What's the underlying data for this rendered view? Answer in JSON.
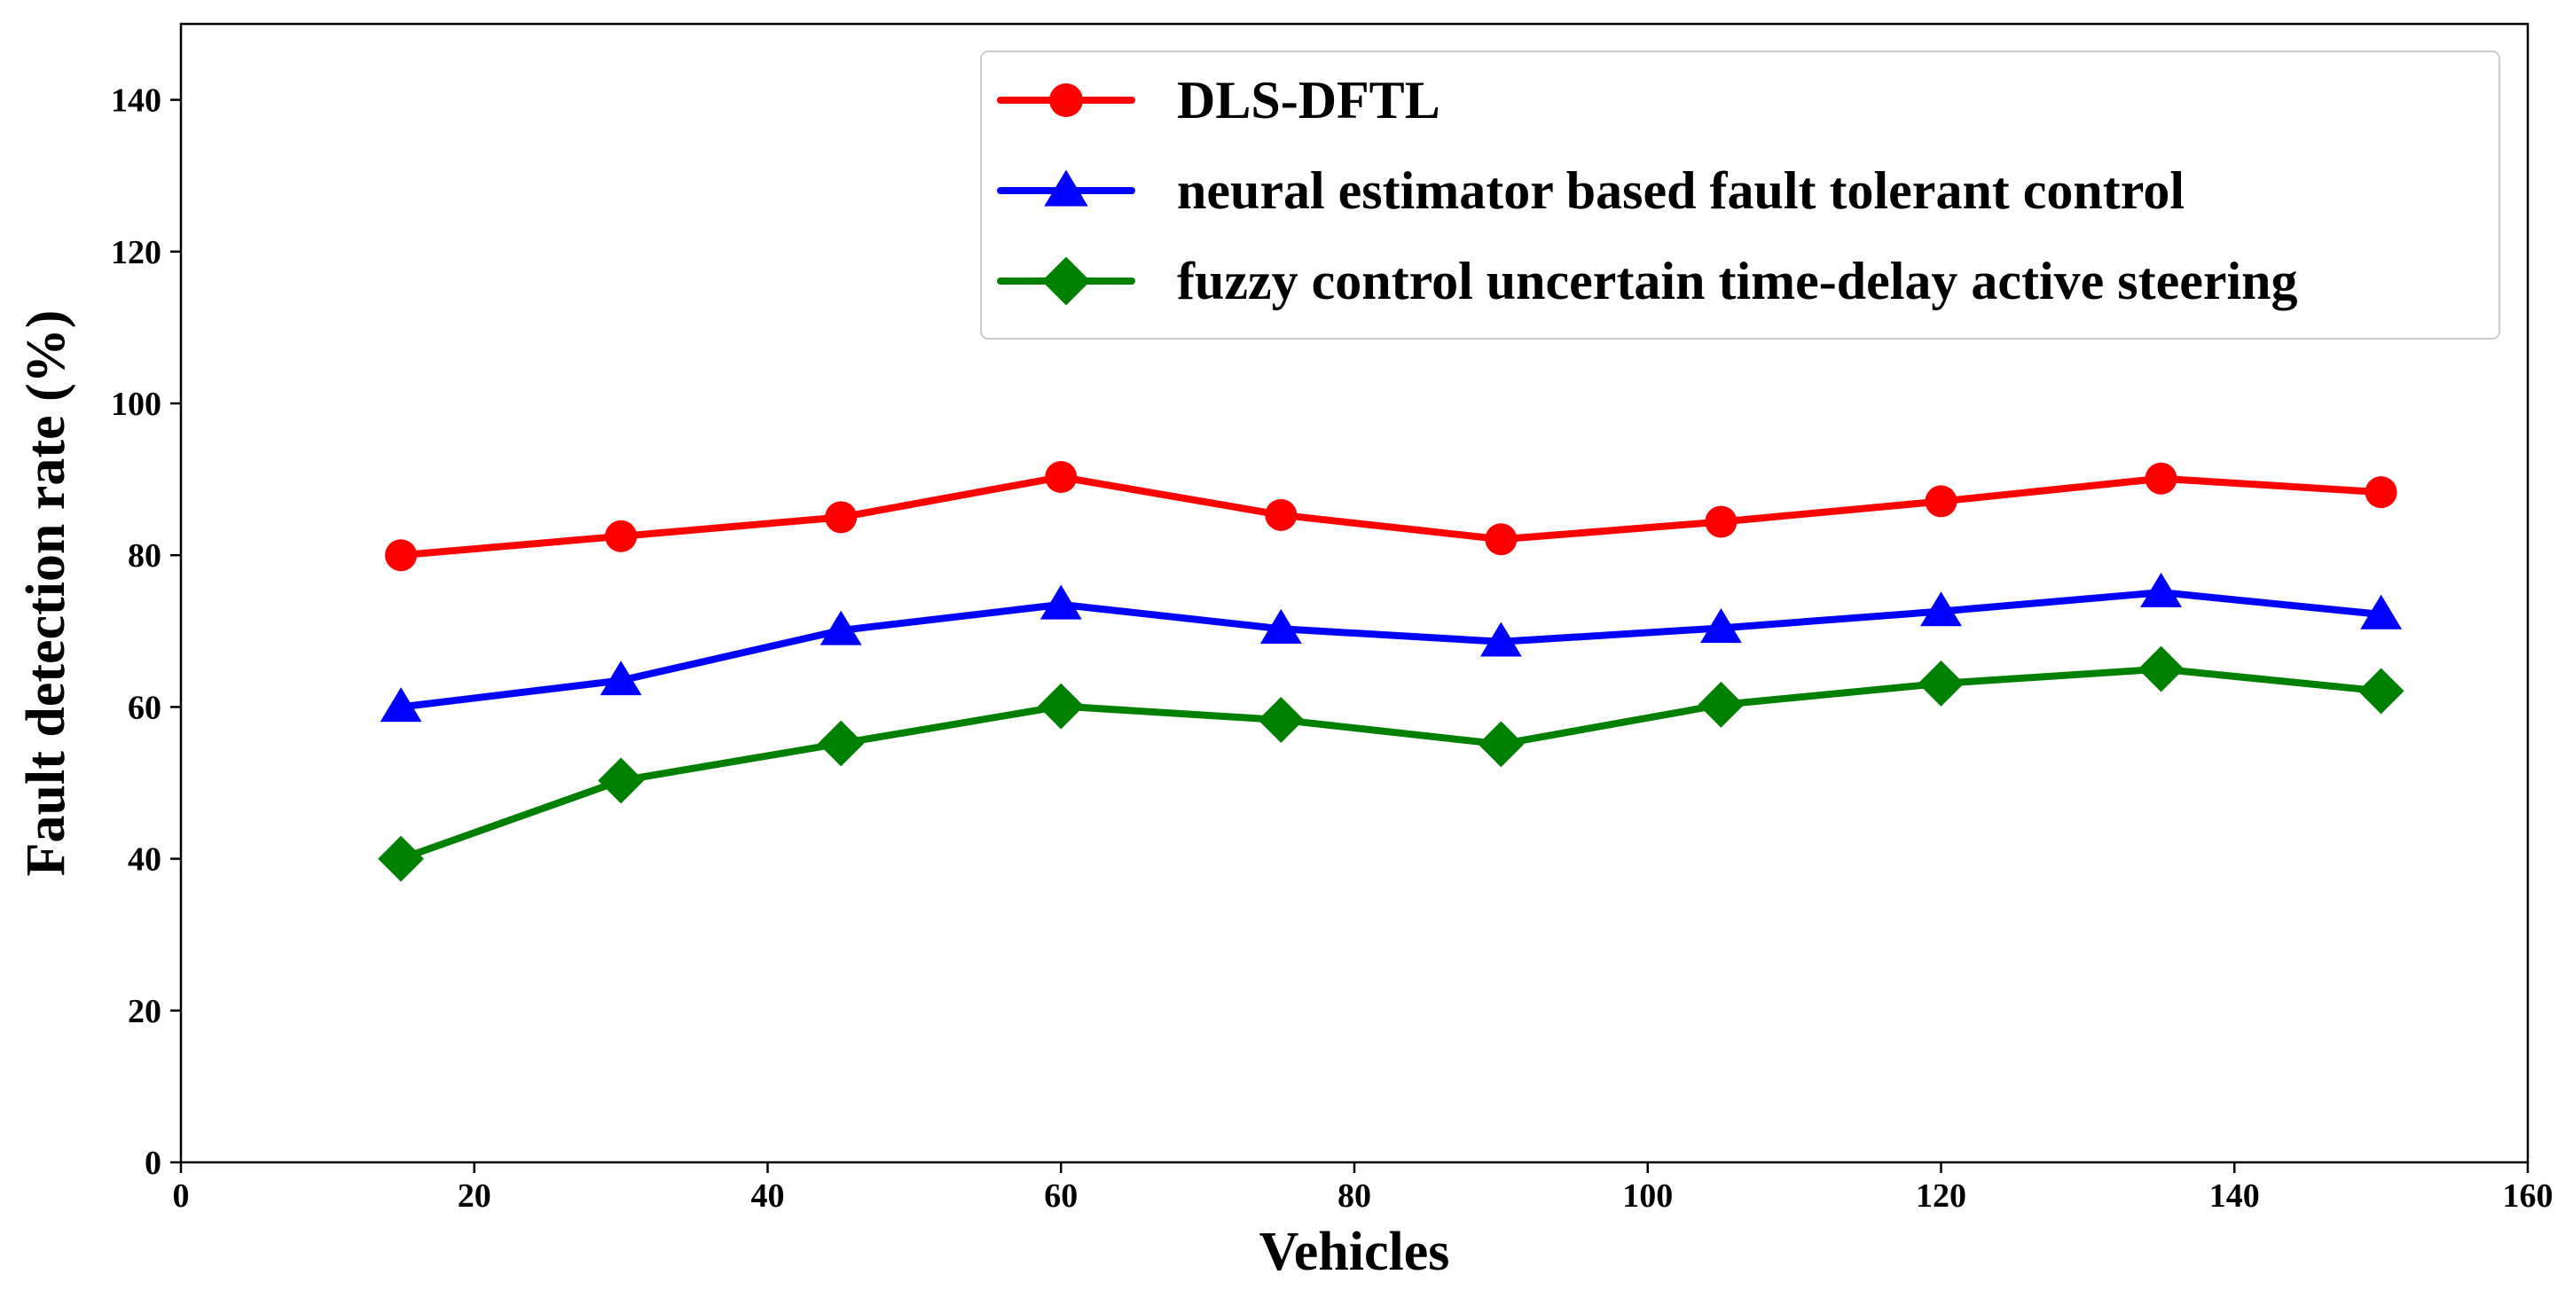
{
  "chart_data": {
    "type": "line",
    "title": "",
    "xlabel": "Vehicles",
    "ylabel": "Fault detection rate (%)",
    "xlim": [
      0,
      160
    ],
    "ylim": [
      0,
      150
    ],
    "xticks": [
      0,
      20,
      40,
      60,
      80,
      100,
      120,
      140,
      160
    ],
    "yticks": [
      0,
      20,
      40,
      60,
      80,
      100,
      120,
      140
    ],
    "grid": false,
    "legend_position": "top-right",
    "x": [
      15,
      30,
      45,
      60,
      75,
      90,
      105,
      120,
      135,
      150
    ],
    "series": [
      {
        "name": "DLS-DFTL",
        "color": "#ff0000",
        "marker": "circle",
        "values": [
          80,
          82.5,
          85,
          90.3,
          85.3,
          82.1,
          84.4,
          87.1,
          90.1,
          88.3
        ]
      },
      {
        "name": "neural estimator based fault tolerant control",
        "color": "#0000ff",
        "marker": "triangle",
        "values": [
          60,
          63.5,
          70.1,
          73.5,
          70.3,
          68.6,
          70.4,
          72.6,
          75.1,
          72.2
        ]
      },
      {
        "name": "fuzzy control uncertain time-delay active steering",
        "color": "#008000",
        "marker": "diamond",
        "values": [
          40,
          50.3,
          55.2,
          60.1,
          58.3,
          55.1,
          60.3,
          63.1,
          65,
          62.1
        ]
      }
    ]
  }
}
